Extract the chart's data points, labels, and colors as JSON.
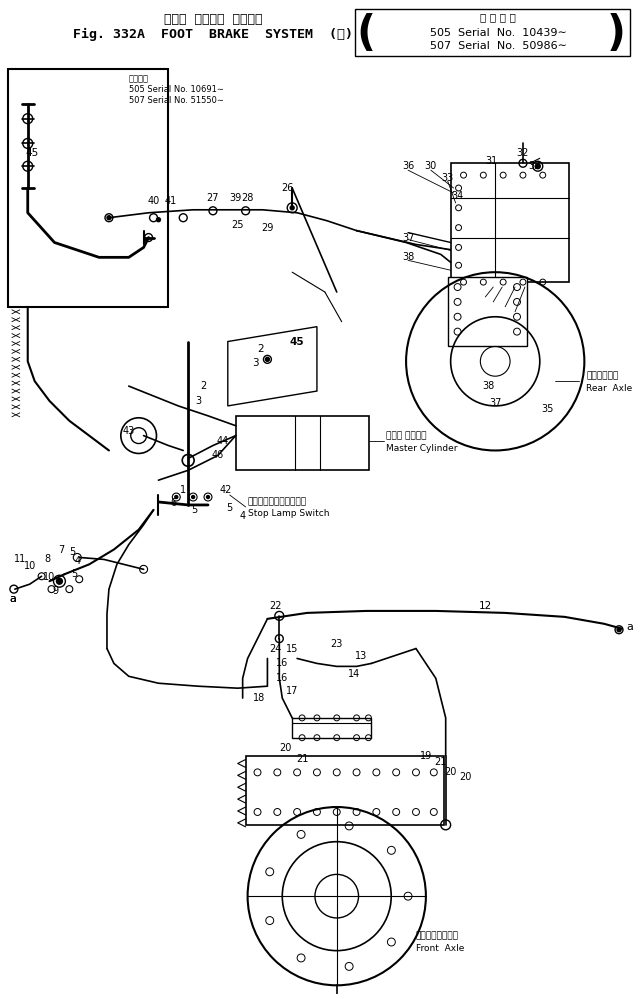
{
  "title_jp": "フート  ブレーキ  システム",
  "title_en": "Fig. 332A  FOOT  BRAKE  SYSTEM  (Ⅱ)",
  "serial_header": "適 用 号 機",
  "serial_line1": "505  Serial  No.  10439∼",
  "serial_line2": "507  Serial  No.  50986∼",
  "inset_serial_header": "適用号機",
  "inset_serial_line1": "505 Serial No. 10691∼",
  "inset_serial_line2": "507 Serial No. 51550∼",
  "label_master_cylinder_jp": "マスタ シリンダ",
  "label_master_cylinder_en": "Master Cylinder",
  "label_stop_lamp_jp": "ストップランプスイッチ",
  "label_stop_lamp_en": "Stop Lamp Switch",
  "label_rear_axle_jp": "リヤアクスル",
  "label_rear_axle_en": "Rear  Axle",
  "label_front_axle_jp": "フロントアクスル",
  "label_front_axle_en": "Front  Axle",
  "bg_color": "#ffffff",
  "line_color": "#000000",
  "text_color": "#000000",
  "fig_width": 6.42,
  "fig_height": 9.99,
  "dpi": 100
}
